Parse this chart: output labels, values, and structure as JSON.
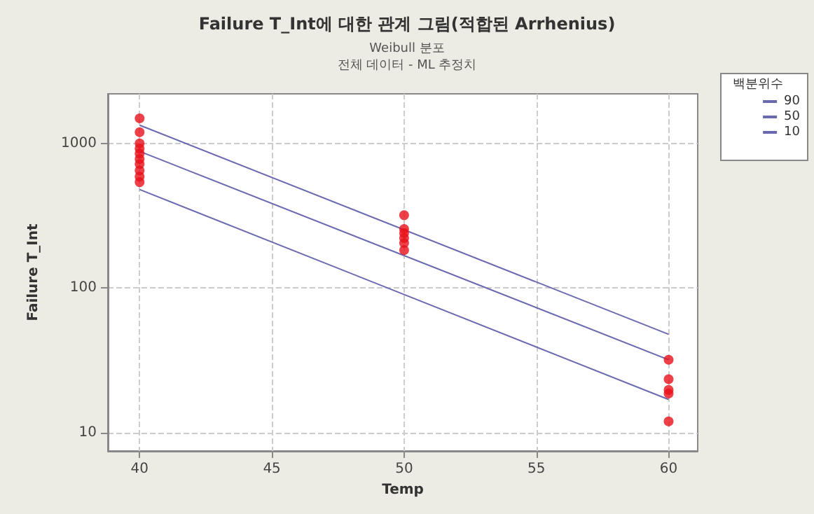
{
  "chart_data": {
    "type": "line",
    "title": "Failure T_Int에 대한 관계 그림(적합된 Arrhenius)",
    "subtitle": "Weibull 분포\n전체 데이터 - ML 추정치",
    "xlabel": "Temp",
    "ylabel": "Failure T_Int",
    "legend_title": "백분위수",
    "log": "y",
    "grid": true,
    "legend": "top right",
    "line_style": "solid",
    "xlim": [
      38.8,
      61.1
    ],
    "xticks": [
      40,
      45,
      50,
      55,
      60
    ],
    "ylim": [
      7.5,
      2200
    ],
    "yticks": [
      10,
      100,
      1000
    ],
    "series": [
      {
        "name": "90",
        "marker": "none",
        "color": "#6a6ab0",
        "x": [
          40,
          60
        ],
        "values": [
          1336,
          48
        ]
      },
      {
        "name": "50",
        "marker": "none",
        "color": "#6a6ab0",
        "x": [
          40,
          60
        ],
        "values": [
          881,
          32
        ]
      },
      {
        "name": "10",
        "marker": "none",
        "color": "#6a6ab0",
        "x": [
          40,
          60
        ],
        "values": [
          480,
          17
        ]
      },
      {
        "type": "scatter",
        "marker": "circle",
        "color": "#e8101a",
        "x": [
          40,
          40,
          40,
          40,
          40,
          40,
          40,
          40,
          40,
          40,
          50,
          50,
          50,
          50,
          50,
          50,
          60,
          60,
          60,
          60,
          60
        ],
        "values": [
          1490,
          1195,
          1000,
          920,
          850,
          780,
          720,
          650,
          590,
          540,
          319,
          256,
          240,
          222,
          205,
          183,
          32,
          23.5,
          19.8,
          18.7,
          12
        ]
      }
    ]
  }
}
